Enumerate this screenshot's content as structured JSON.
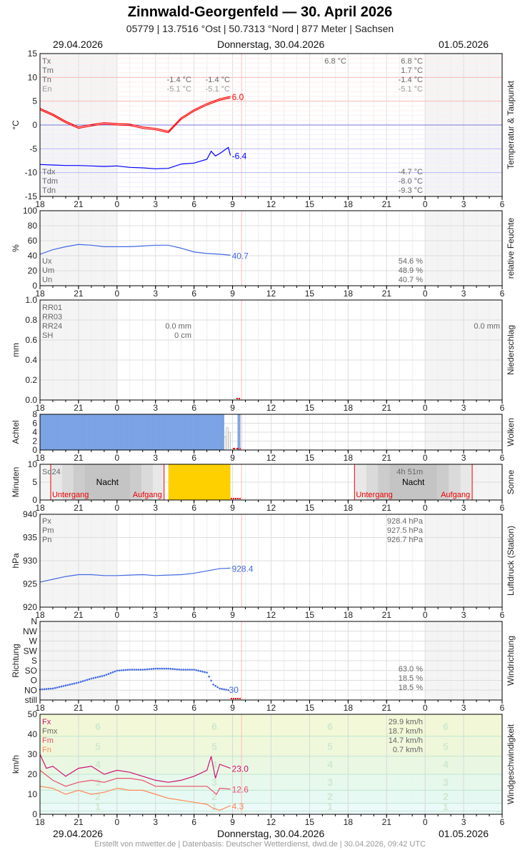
{
  "header": {
    "title": "Zinnwald-Georgenfeld  —  30. April 2026",
    "subtitle": "05779  |  13.7516 °Ost  |  50.7313 °Nord  |  877 Meter  |  Sachsen"
  },
  "dates": {
    "left": "29.04.2026",
    "center": "Donnerstag, 30.04.2026",
    "right": "01.05.2026"
  },
  "footer": "Erstellt von mtwetter.de | Datenbasis: Deutscher Wetterdienst, dwd.de | 30.04.2026, 09:42 UTC",
  "x_ticks": [
    "18",
    "21",
    "0",
    "3",
    "6",
    "9",
    "12",
    "15",
    "18",
    "21",
    "0",
    "3",
    "6"
  ],
  "now": "30.04 09:42",
  "chart_data": [
    {
      "type": "line",
      "id": "temp",
      "ylabel": "°C",
      "side_label": "Temperatur & Taupunkt",
      "ylim": [
        -15,
        15
      ],
      "yticks": [
        15,
        10,
        5,
        0,
        -5,
        -10,
        -15
      ],
      "series": [
        {
          "color": "#ff0000",
          "x": [
            "29.04 18:00",
            "29.04 19:00",
            "29.04 20:00",
            "29.04 21:00",
            "29.04 22:00",
            "29.04 23:00",
            "30.04 00:00",
            "30.04 01:00",
            "30.04 02:00",
            "30.04 03:00",
            "30.04 04:00",
            "30.04 05:00",
            "30.04 06:00",
            "30.04 07:00",
            "30.04 08:00",
            "30.04 08:50"
          ],
          "values": [
            3.5,
            2.3,
            0.8,
            -0.4,
            0.1,
            0.5,
            0.3,
            0.2,
            -0.4,
            -0.7,
            -1.3,
            1.5,
            3.2,
            4.5,
            5.5,
            6.0
          ],
          "end_label": "6.0"
        },
        {
          "color": "#0000ff",
          "x": [
            "29.04 18:00",
            "29.04 19:00",
            "29.04 20:00",
            "29.04 21:00",
            "29.04 22:00",
            "29.04 23:00",
            "30.04 00:00",
            "30.04 01:00",
            "30.04 02:00",
            "30.04 03:00",
            "30.04 04:00",
            "30.04 05:00",
            "30.04 06:00",
            "30.04 07:00",
            "30.04 07:20",
            "30.04 07:40",
            "30.04 08:00",
            "30.04 08:40",
            "30.04 08:50"
          ],
          "values": [
            -8.3,
            -8.4,
            -8.5,
            -8.5,
            -8.6,
            -8.7,
            -8.6,
            -8.9,
            -9.0,
            -9.2,
            -9.1,
            -8.2,
            -8.0,
            -7.2,
            -5.5,
            -6.5,
            -6.0,
            -4.7,
            -6.4
          ],
          "end_label": "-6.4"
        }
      ],
      "stats_top": [
        [
          "Tx",
          "6.8 °C",
          "6.8 °C",
          "",
          ""
        ],
        [
          "Tm",
          "",
          "1.7 °C",
          "",
          ""
        ],
        [
          "Tn",
          "",
          "-1.4 °C",
          "-1.4 °C",
          "-1.4 °C"
        ],
        [
          "En",
          "",
          "-5.1 °C",
          "-5.1 °C",
          "-5.1 °C"
        ]
      ],
      "stats_bottom": [
        [
          "Tdx",
          "-4.7 °C"
        ],
        [
          "Tdm",
          "-8.0 °C"
        ],
        [
          "Tdn",
          "-9.3 °C"
        ]
      ]
    },
    {
      "type": "line",
      "id": "hum",
      "ylabel": "%",
      "side_label": "relative Feuchte",
      "ylim": [
        0,
        100
      ],
      "yticks": [
        100,
        80,
        60,
        40,
        20,
        0
      ],
      "series": [
        {
          "color": "#4169e1",
          "x": [
            "29.04 18:00",
            "29.04 19:00",
            "29.04 20:00",
            "29.04 21:00",
            "29.04 22:00",
            "29.04 23:00",
            "30.04 00:00",
            "30.04 01:00",
            "30.04 02:00",
            "30.04 03:00",
            "30.04 04:00",
            "30.04 05:00",
            "30.04 06:00",
            "30.04 07:00",
            "30.04 08:00",
            "30.04 08:50"
          ],
          "values": [
            42,
            48,
            52,
            55,
            54,
            52,
            52,
            52,
            53,
            54,
            54,
            50,
            45,
            43,
            42,
            40.7
          ],
          "end_label": "40.7"
        }
      ],
      "stats": [
        [
          "Ux",
          "54.6 %"
        ],
        [
          "Um",
          "48.9 %"
        ],
        [
          "Un",
          "40.7 %"
        ]
      ]
    },
    {
      "type": "bar",
      "id": "rain",
      "ylabel": "mm",
      "side_label": "Niederschlag",
      "ylim": [
        0,
        1
      ],
      "yticks": [
        "1.0",
        "0.8",
        "0.6",
        "0.4",
        "0.2",
        "0.0"
      ],
      "stats": [
        [
          "RR01",
          ""
        ],
        [
          "RR03",
          ""
        ],
        [
          "RR24",
          "0.0 mm"
        ],
        [
          "SH",
          "0 cm"
        ]
      ],
      "right_value": "0.0 mm"
    },
    {
      "type": "bar",
      "id": "cloud",
      "ylabel": "Achtel",
      "side_label": "Wolken",
      "ylim": [
        0,
        8
      ],
      "yticks": [
        8,
        6,
        4,
        2,
        0
      ],
      "x": [
        "29.04 18:00",
        "30.04 08:20",
        "30.04 08:30",
        "30.04 08:40",
        "30.04 09:30"
      ],
      "values": [
        8,
        3,
        5,
        4,
        8
      ]
    },
    {
      "type": "bar",
      "id": "sun",
      "ylabel": "Minuten",
      "side_label": "Sonne",
      "ylim": [
        0,
        10
      ],
      "yticks": [
        10,
        5,
        0
      ],
      "sun_from": "30.04 04:00",
      "sun_to": "30.04 08:50",
      "value": 10,
      "labels": {
        "sd24": "Sd24",
        "total": "4h 51m",
        "night": "Nacht",
        "sunset": "Untergang",
        "sunrise": "Aufgang"
      },
      "nights": [
        [
          "29.04 18:50",
          "30.04 03:40"
        ],
        [
          "30.04 18:30",
          "01.05 03:40"
        ]
      ]
    },
    {
      "type": "line",
      "id": "press",
      "ylabel": "hPa",
      "side_label": "Luftdruck (Station)",
      "ylim": [
        920,
        940
      ],
      "yticks": [
        940,
        935,
        930,
        925,
        920
      ],
      "series": [
        {
          "color": "#4169e1",
          "x": [
            "29.04 18:00",
            "29.04 19:00",
            "29.04 20:00",
            "29.04 21:00",
            "29.04 22:00",
            "29.04 23:00",
            "30.04 00:00",
            "30.04 01:00",
            "30.04 02:00",
            "30.04 03:00",
            "30.04 04:00",
            "30.04 05:00",
            "30.04 06:00",
            "30.04 07:00",
            "30.04 08:00",
            "30.04 08:50"
          ],
          "values": [
            925.4,
            926,
            926.6,
            927,
            927,
            926.8,
            926.8,
            926.9,
            927,
            926.8,
            926.9,
            927,
            927.3,
            927.8,
            928.3,
            928.4
          ],
          "end_label": "928.4"
        }
      ],
      "stats": [
        [
          "Px",
          "928.4 hPa"
        ],
        [
          "Pm",
          "927.5 hPa"
        ],
        [
          "Pn",
          "926.7 hPa"
        ]
      ]
    },
    {
      "type": "scatter",
      "id": "dir",
      "ylabel": "Richtung",
      "side_label": "Windrichtung",
      "yticks": [
        "N",
        "NW",
        "W",
        "SW",
        "S",
        "SO",
        "O",
        "NO",
        "still"
      ],
      "series": [
        {
          "color": "#4169e1",
          "x": [
            "29.04 18:00",
            "29.04 19:00",
            "29.04 20:00",
            "29.04 21:00",
            "29.04 22:00",
            "29.04 23:00",
            "30.04 00:00",
            "30.04 01:00",
            "30.04 02:00",
            "30.04 03:00",
            "30.04 04:00",
            "30.04 05:00",
            "30.04 06:00",
            "30.04 07:00",
            "30.04 07:30",
            "30.04 08:00",
            "30.04 08:50"
          ],
          "values": [
            35,
            40,
            55,
            70,
            90,
            105,
            130,
            135,
            135,
            140,
            140,
            135,
            135,
            120,
            60,
            40,
            30
          ],
          "end_label": "30"
        }
      ],
      "stats": [
        "63.0 %",
        "18.5 %",
        "18.5 %"
      ]
    },
    {
      "type": "line",
      "id": "wind",
      "ylabel": "km/h",
      "side_label": "Windgeschwindigkeit",
      "ylim": [
        0,
        50
      ],
      "yticks": [
        50,
        40,
        30,
        20,
        10,
        0
      ],
      "beaufort": [
        "1",
        "2",
        "3",
        "4",
        "5",
        "6"
      ],
      "series": [
        {
          "color": "#cc1177",
          "x": [
            "29.04 18:00",
            "29.04 18:30",
            "29.04 19:00",
            "29.04 20:00",
            "29.04 21:00",
            "29.04 22:00",
            "29.04 23:00",
            "30.04 00:00",
            "30.04 01:00",
            "30.04 02:00",
            "30.04 03:00",
            "30.04 04:00",
            "30.04 05:00",
            "30.04 06:00",
            "30.04 07:00",
            "30.04 07:20",
            "30.04 07:40",
            "30.04 08:00",
            "30.04 08:50"
          ],
          "values": [
            30,
            23,
            24,
            19,
            23,
            24,
            20,
            22,
            21,
            19,
            17,
            16,
            17,
            19,
            22,
            29,
            18,
            25,
            23
          ],
          "end_label": "23.0"
        },
        {
          "color": "#e8506a",
          "x": [
            "29.04 18:00",
            "29.04 19:00",
            "29.04 20:00",
            "29.04 21:00",
            "29.04 22:00",
            "29.04 23:00",
            "30.04 00:00",
            "30.04 01:00",
            "30.04 02:00",
            "30.04 03:00",
            "30.04 04:00",
            "30.04 05:00",
            "30.04 06:00",
            "30.04 07:00",
            "30.04 07:45",
            "30.04 08:00",
            "30.04 08:50"
          ],
          "values": [
            22,
            17,
            14,
            16,
            17,
            16,
            18,
            18,
            17,
            14,
            14,
            14,
            14,
            14,
            10,
            13,
            12.6
          ],
          "end_label": "12.6"
        },
        {
          "color": "#ff8855",
          "x": [
            "29.04 18:00",
            "29.04 19:00",
            "29.04 20:00",
            "29.04 21:00",
            "29.04 22:00",
            "29.04 23:00",
            "30.04 00:00",
            "30.04 01:00",
            "30.04 02:00",
            "30.04 03:00",
            "30.04 04:00",
            "30.04 05:00",
            "30.04 06:00",
            "30.04 07:00",
            "30.04 07:30",
            "30.04 08:00",
            "30.04 08:50"
          ],
          "values": [
            14,
            13,
            10,
            12,
            10,
            11,
            13,
            12,
            12,
            10,
            8,
            7,
            6,
            5,
            3,
            2,
            4.3
          ],
          "end_label": "4.3"
        }
      ],
      "stats": [
        [
          "Fx",
          "29.9 km/h",
          "#cc1177"
        ],
        [
          "Fmx",
          "18.7 km/h",
          "#666666"
        ],
        [
          "Fm",
          "14.7 km/h",
          "#e8506a"
        ],
        [
          "Fn",
          "0.7 km/h",
          "#ff8855"
        ]
      ]
    }
  ]
}
